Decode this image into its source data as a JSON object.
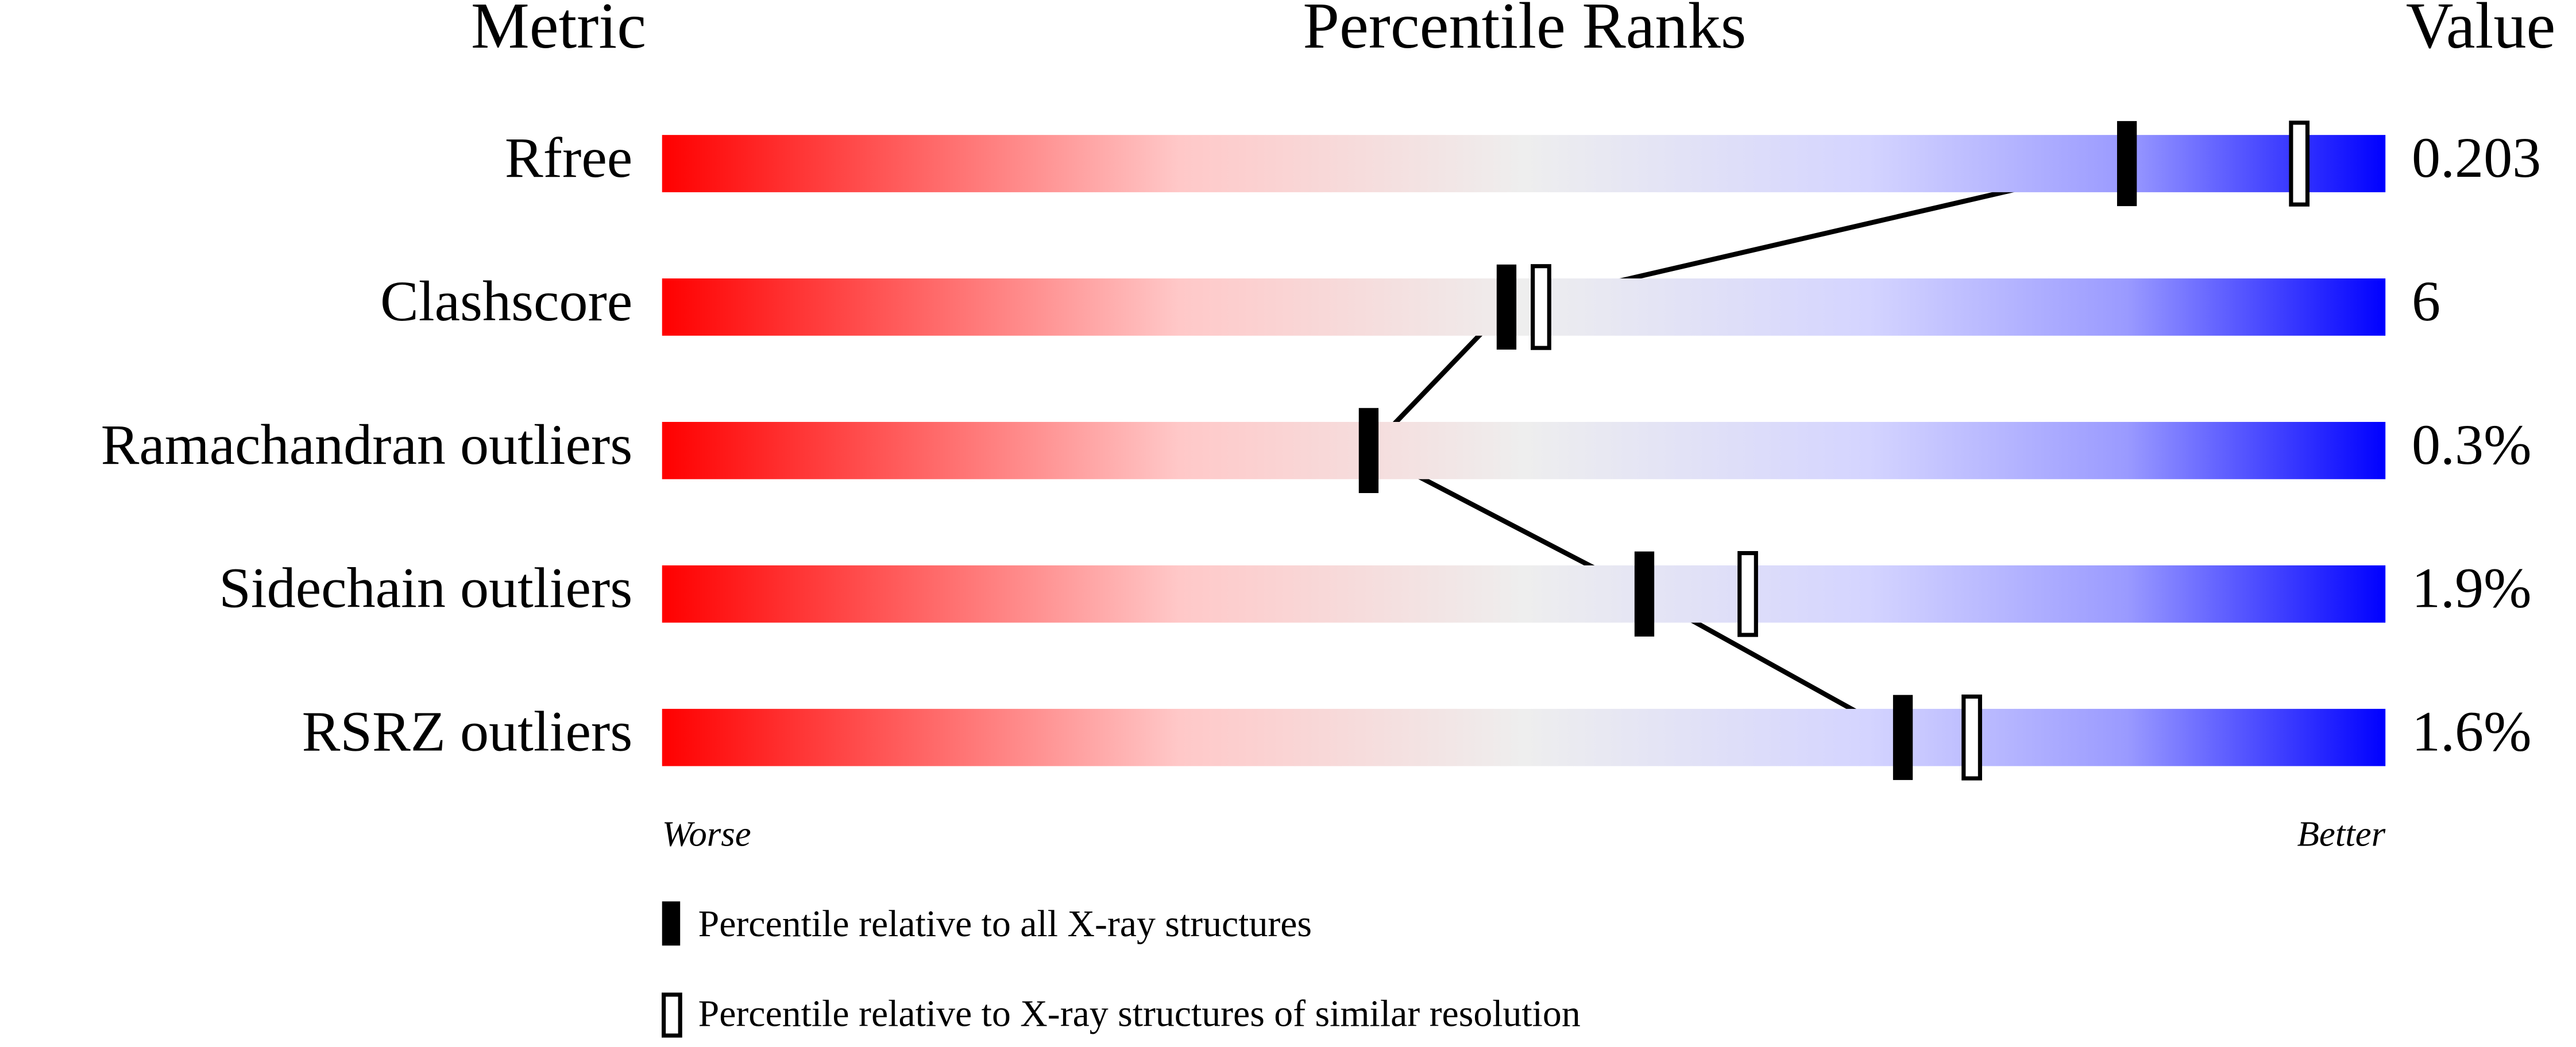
{
  "chart_data": {
    "type": "percentile-slider",
    "headers": {
      "metric": "Metric",
      "ranks": "Percentile Ranks",
      "value": "Value"
    },
    "categories": [
      "Rfree",
      "Clashscore",
      "Ramachandran outliers",
      "Sidechain outliers",
      "RSRZ outliers"
    ],
    "metric_values": [
      "0.203",
      "6",
      "0.3%",
      "1.9%",
      "1.6%"
    ],
    "series": [
      {
        "name": "Percentile relative to all X-ray structures",
        "color": "#000000",
        "values": [
          85,
          49,
          41,
          57,
          72
        ]
      },
      {
        "name": "Percentile relative to X-ray structures of similar resolution",
        "color": "#000000",
        "values": [
          95,
          51,
          null,
          63,
          76
        ]
      }
    ],
    "xlim": [
      0,
      100
    ],
    "low_label": "Worse",
    "high_label": "Better"
  }
}
